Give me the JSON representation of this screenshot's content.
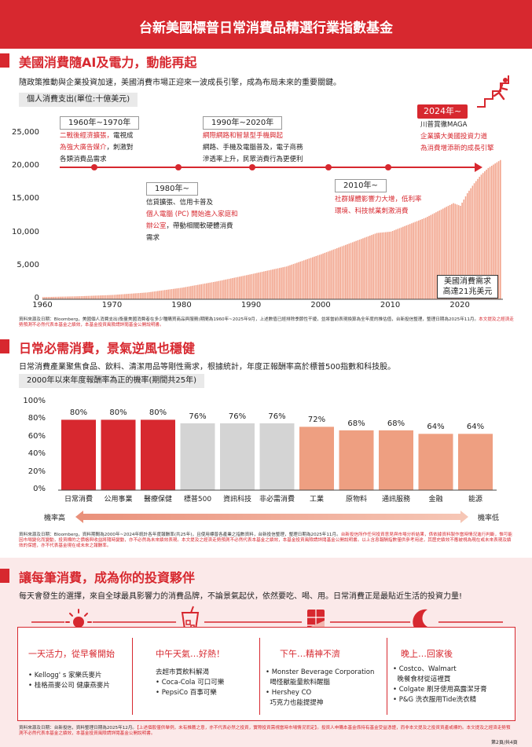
{
  "header": {
    "title": "台新美國標普日常消費品精選行業指數基金"
  },
  "section1": {
    "title": "美國消費隨AI及電力，動能再起",
    "desc": "隨政策推動與企業投資加速，美國消費市場正迎來一波成長引擎，成為布局未來的重要關鍵。",
    "pill": "個人消費支出(單位:十億美元)",
    "y_ticks": [
      "25,000",
      "20,000",
      "15,000",
      "10,000",
      "5,000",
      "0"
    ],
    "x_ticks": [
      "1960",
      "1970",
      "1980",
      "1990",
      "2000",
      "2010",
      "2020"
    ],
    "eras": [
      {
        "head": "1960年~1970年",
        "lines": [
          [
            "二戰後經濟擴張，",
            "電視成"
          ],
          [
            "為強大廣告媒介",
            "，刺激對"
          ],
          [
            "",
            "各類消費品需求"
          ]
        ]
      },
      {
        "head": "1980年~",
        "lines": [
          [
            "",
            "信貸擴張、信用卡普及"
          ],
          [
            "個人電腦 (PC) 開始進入家庭和",
            ""
          ],
          [
            "辦公室",
            "，帶動相關軟硬體消費"
          ],
          [
            "",
            "需求"
          ]
        ]
      },
      {
        "head": "1990年~2020年",
        "lines": [
          [
            "網際網路和智慧型手機興起",
            ""
          ],
          [
            "",
            "網路、手機及電腦普及，電子商務"
          ],
          [
            "",
            "滲透率上升，民眾消費行為更便利"
          ]
        ]
      },
      {
        "head": "2010年~",
        "lines": [
          [
            "社群媒體影響力大增，低利率",
            ""
          ],
          [
            "環境、科技就業刺激消費",
            ""
          ]
        ]
      },
      {
        "head": "2024年~",
        "lines": [
          [
            "",
            "川普賞徹MAGA"
          ],
          [
            "企業擴大美國投資力道",
            ""
          ],
          [
            "為消費增添新的成長引擎",
            ""
          ]
        ]
      }
    ],
    "callout": [
      "美國消費需求",
      "高達21兆美元"
    ],
    "source": "資料來源及日期：Bloomberg，美國個人消費支出(衡量美國消費者在多少種購買商品與服務)期間為1960年~2025年9月，上述數值已經排除季節性干擾，並將當前表現換算為全年度的推估值，台新投信整理，整理日期為2025年11月。",
    "source_red": "本文提及之經濟走勢預測不必然代表本基金之績效，本基金投資風險請詳閱基金公開說明書。"
  },
  "chart_data": {
    "type": "bar",
    "title": "個人消費支出(單位:十億美元)",
    "xlabel": "",
    "ylabel": "",
    "ylim": [
      0,
      25000
    ],
    "x_range": [
      1960,
      2025.75
    ],
    "x": [
      1960,
      1965,
      1970,
      1975,
      1980,
      1985,
      1990,
      1995,
      2000,
      2005,
      2008,
      2010,
      2015,
      2019,
      2020,
      2021,
      2022,
      2023,
      2024,
      2025.75
    ],
    "values": [
      330,
      450,
      650,
      1030,
      1750,
      2700,
      3800,
      4950,
      6800,
      8800,
      10000,
      10200,
      12300,
      14500,
      14100,
      16000,
      17500,
      18800,
      19800,
      21000
    ]
  },
  "section2": {
    "title": "日常必需消費，景氣逆風也穩健",
    "desc": "日常消費產業聚焦食品、飲料、清潔用品等剛性需求，根據統計，年度正報酬率高於標普500指數和科技股。",
    "pill": "2000年以來年度報酬率為正的機率(期間共25年)",
    "y_ticks": [
      "100%",
      "80%",
      "60%",
      "40%",
      "20%",
      "0%"
    ],
    "arrow_left": "機率高",
    "arrow_right": "機率低",
    "source": "資料來源及日期：Bloomberg，資料期間為2000年~2024年統計各年度報酬率(共25年)，且使用標普各產業之指數資料，台新投信整理，整理日期為2025年11月。",
    "source_red": "台新投信所作任何投資意見與市場分析結果，係依據資料製作當時情況進行判斷，惟可能因市場變化而變動，投資標的之價格與收益將隨時變動，亦不必然為未來績效表現。本文提及之經濟走勢預測不必然代表本基金之績效，本基金投資風險請詳閱基金公開說明書。以上含息報酬指數僅供參考用途，其歷史績效不應被視為現在或未來表現及績效的保證，亦不代表基金現在或未來之報酬率。"
  },
  "chart_data_2": {
    "type": "bar",
    "categories": [
      "日常消費",
      "公用事業",
      "醫療保健",
      "標普500",
      "資訊科技",
      "非必需消費",
      "工業",
      "原物料",
      "通訊服務",
      "金融",
      "能源"
    ],
    "values": [
      80,
      80,
      80,
      76,
      76,
      76,
      72,
      68,
      68,
      64,
      64
    ],
    "value_labels": [
      "80%",
      "80%",
      "80%",
      "76%",
      "76%",
      "76%",
      "72%",
      "68%",
      "68%",
      "64%",
      "64%"
    ],
    "ylim": [
      0,
      100
    ],
    "colors": [
      "#d7282f",
      "#d7282f",
      "#d7282f",
      "#d4d4d4",
      "#d4d4d4",
      "#d4d4d4",
      "#ee9f81",
      "#ee9f81",
      "#ee9f81",
      "#ee9f81",
      "#ee9f81"
    ]
  },
  "section3": {
    "title": "讓每筆消費，成為你的投資夥伴",
    "desc": "每天會發生的選擇，來自全球最具影響力的消費品牌，不論景氣起伏，依然要吃、喝、用。日常消費正是最貼近生活的投資力量!",
    "columns": [
      {
        "icon": "sun-icon",
        "title": "一天活力，從早餐開始",
        "items": [
          "• Kellogg' s 家樂氏麥片",
          "• 桂格燕麥公司 健康燕麥片"
        ]
      },
      {
        "icon": "iced-drink-icon",
        "title": "中午天氣…好熱！",
        "items": [
          "去超市買飲料解渴",
          "• Coca-Cola 可口可樂",
          "• PepsiCo 百事可樂"
        ]
      },
      {
        "icon": "chocolate-icon",
        "title": "下午…精神不濟",
        "items": [
          "• Monster Beverage Corporation",
          "  喝怪獸能量飲料醒腦",
          "• Hershey CO",
          "  巧克力也能提提神"
        ]
      },
      {
        "icon": "moon-icon",
        "title": "晚上…回家後",
        "items": [
          "• Costco、Walmart",
          "  晚餐食材從這裡買",
          "• Colgate 刷牙使用高露潔牙膏",
          "• P&G 洗衣服用Tide洗衣精"
        ]
      }
    ],
    "source": "資料來源及日期：台新投信，資料整理日期為2025年12月。",
    "source_red": "【上述個股僅供舉例，未有推薦之意，亦不代表必然之投資，實際投資需視當時市場情況而定】。投資人申購本基金係持有基金受益憑證，而非本文提及之投資資產或標的。本文提及之經濟走勢預測不必然代表本基金之績效，本基金投資風險請詳閱基金公開說明書。",
    "page": "第2頁/共4頁"
  },
  "colors": {
    "accent": "#d7282f",
    "pink_bg": "#fbe9e9",
    "salmon": "#ee9f81",
    "grey_bar": "#d4d4d4"
  }
}
